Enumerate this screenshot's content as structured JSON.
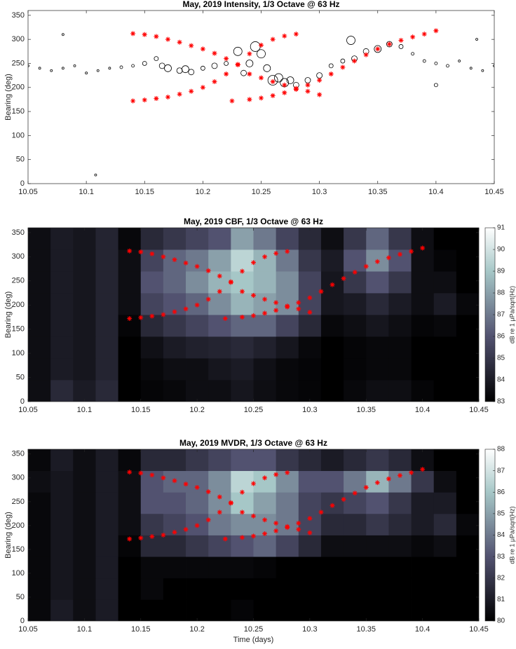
{
  "chart_data": [
    {
      "type": "scatter",
      "title": "May, 2019 Intensity, 1/3 Octave @ 63 Hz",
      "ylabel": "Bearing (deg)",
      "xlim": [
        10.05,
        10.45
      ],
      "xticks": [
        10.05,
        10.1,
        10.15,
        10.2,
        10.25,
        10.3,
        10.35,
        10.4,
        10.45
      ],
      "ylim": [
        0,
        360
      ],
      "yticks": [
        0,
        50,
        100,
        150,
        200,
        250,
        300,
        350
      ],
      "series": [
        {
          "marker": "o",
          "color": "#000000",
          "x": [
            10.05,
            10.06,
            10.07,
            10.08,
            10.09,
            10.1,
            10.11,
            10.12,
            10.13,
            10.14,
            10.15,
            10.16,
            10.165,
            10.17,
            10.18,
            10.185,
            10.19,
            10.2,
            10.21,
            10.22,
            10.23,
            10.235,
            10.24,
            10.245,
            10.25,
            10.255,
            10.26,
            10.265,
            10.27,
            10.275,
            10.28,
            10.29,
            10.3,
            10.31,
            10.32,
            10.327,
            10.33,
            10.34,
            10.35,
            10.36,
            10.37,
            10.38,
            10.39,
            10.4,
            10.41,
            10.42,
            10.43,
            10.44,
            10.45,
            10.08,
            10.108,
            10.435,
            10.4
          ],
          "y": [
            245,
            240,
            235,
            240,
            245,
            230,
            235,
            240,
            242,
            245,
            250,
            260,
            245,
            240,
            235,
            238,
            232,
            240,
            245,
            250,
            275,
            230,
            250,
            285,
            270,
            240,
            215,
            220,
            210,
            215,
            205,
            215,
            225,
            245,
            255,
            298,
            260,
            275,
            280,
            290,
            285,
            270,
            255,
            250,
            245,
            255,
            240,
            235,
            245,
            310,
            18,
            300,
            205
          ],
          "sizes": [
            1.5,
            1.5,
            1.5,
            1.5,
            1.5,
            1.5,
            1.5,
            1.5,
            2,
            2,
            3,
            3,
            4,
            5,
            4,
            5,
            4,
            3,
            4,
            3,
            6,
            4,
            5,
            7,
            6,
            5,
            7,
            6,
            6,
            5,
            4,
            4,
            4,
            3,
            3,
            6,
            4,
            4,
            5,
            4,
            3,
            2,
            2,
            2,
            2,
            1.5,
            1.5,
            1.5,
            1.5,
            1.5,
            1.5,
            1.5,
            2.5
          ]
        },
        {
          "marker": "*",
          "color": "#ff0000",
          "x": [
            10.14,
            10.15,
            10.16,
            10.17,
            10.18,
            10.19,
            10.2,
            10.21,
            10.22,
            10.23,
            10.24,
            10.25,
            10.26,
            10.27,
            10.28,
            10.29,
            10.3
          ],
          "y": [
            312,
            310,
            306,
            300,
            294,
            287,
            280,
            271,
            260,
            247,
            228,
            220,
            212,
            205,
            198,
            192,
            185
          ]
        },
        {
          "marker": "*",
          "color": "#ff0000",
          "x": [
            10.14,
            10.15,
            10.16,
            10.17,
            10.18,
            10.19,
            10.2,
            10.21,
            10.22,
            10.23,
            10.24,
            10.25,
            10.26,
            10.27,
            10.28
          ],
          "y": [
            172,
            174,
            177,
            180,
            186,
            192,
            200,
            212,
            228,
            248,
            270,
            288,
            300,
            307,
            311
          ]
        },
        {
          "marker": "*",
          "color": "#ff0000",
          "x": [
            10.225,
            10.24,
            10.25,
            10.26,
            10.27,
            10.28,
            10.29,
            10.3,
            10.31,
            10.32,
            10.33,
            10.34,
            10.35,
            10.36,
            10.37,
            10.38,
            10.39,
            10.4
          ],
          "y": [
            172,
            175,
            178,
            183,
            189,
            196,
            205,
            215,
            228,
            242,
            255,
            268,
            280,
            290,
            298,
            305,
            311,
            318
          ]
        }
      ]
    },
    {
      "type": "heatmap",
      "title": "May, 2019 CBF, 1/3 Octave @ 63 Hz",
      "ylabel": "Bearing (deg)",
      "xlim": [
        10.05,
        10.45
      ],
      "xticks": [
        10.05,
        10.1,
        10.15,
        10.2,
        10.25,
        10.3,
        10.35,
        10.4,
        10.45
      ],
      "ylim": [
        0,
        360
      ],
      "yticks": [
        0,
        50,
        100,
        150,
        200,
        250,
        300,
        350
      ],
      "colormap": "bone",
      "colorbar_label": "dB re 1 μPa/sqrt(Hz)",
      "zlim": [
        83,
        91
      ],
      "zticks": [
        83,
        84,
        85,
        86,
        87,
        88,
        89,
        90,
        91
      ],
      "xbins": [
        10.05,
        10.07,
        10.09,
        10.11,
        10.13,
        10.15,
        10.17,
        10.19,
        10.21,
        10.23,
        10.25,
        10.27,
        10.29,
        10.31,
        10.33,
        10.35,
        10.37,
        10.39,
        10.41,
        10.43,
        10.45
      ],
      "ybins": [
        0,
        45,
        90,
        135,
        180,
        225,
        270,
        315,
        360
      ],
      "z": [
        [
          83.5,
          84.5,
          84,
          84.5,
          83,
          83.2,
          83.3,
          83.5,
          83.5,
          83.8,
          83.5,
          83.3,
          83.2,
          83,
          83.3,
          83.5,
          83.5,
          83.2,
          83,
          83
        ],
        [
          83.5,
          84,
          83.8,
          84.3,
          83,
          83.3,
          83.5,
          83.5,
          83.8,
          84,
          83.6,
          83.3,
          83.2,
          83,
          83.2,
          83.3,
          83.3,
          83,
          83,
          83
        ],
        [
          83.5,
          84,
          83.8,
          84.3,
          83,
          83.6,
          84,
          84.2,
          84.3,
          84.5,
          84.2,
          83.8,
          83.3,
          83,
          83.2,
          83.3,
          83.3,
          83,
          83,
          83
        ],
        [
          83.5,
          84,
          83.8,
          84.3,
          83.2,
          84.5,
          85,
          85.5,
          86,
          86.5,
          86.5,
          85.5,
          84.5,
          83.3,
          83.5,
          83.8,
          83.5,
          83.2,
          83.3,
          83
        ],
        [
          83.5,
          84,
          83.8,
          84.3,
          83.5,
          85.5,
          86,
          86.5,
          87.5,
          88.5,
          88,
          87.5,
          85.5,
          83.8,
          84,
          84.5,
          84,
          83.5,
          84,
          83.3
        ],
        [
          83.5,
          84,
          83.8,
          84.3,
          83.5,
          86,
          86.5,
          87.5,
          88.5,
          89,
          88.5,
          87.5,
          85.5,
          83.8,
          85,
          86,
          85,
          83.5,
          83.5,
          83
        ],
        [
          83.5,
          84,
          83.8,
          84.3,
          83.5,
          85.5,
          86.5,
          87,
          88,
          89.5,
          88.5,
          87,
          85,
          84,
          86,
          87.5,
          86,
          83.5,
          83.2,
          83
        ],
        [
          83.5,
          84,
          83.8,
          84.3,
          83.3,
          84.5,
          85,
          85.5,
          86,
          88,
          87,
          85.5,
          84.5,
          83.5,
          85,
          86.5,
          85,
          83.5,
          83,
          83
        ]
      ],
      "series": [
        {
          "marker": "*",
          "color": "#ff0000",
          "x": [
            10.14,
            10.15,
            10.16,
            10.17,
            10.18,
            10.19,
            10.2,
            10.21,
            10.22,
            10.23,
            10.24,
            10.25,
            10.26,
            10.27,
            10.28,
            10.29,
            10.3
          ],
          "y": [
            312,
            310,
            306,
            300,
            294,
            287,
            280,
            271,
            260,
            247,
            228,
            220,
            212,
            205,
            198,
            192,
            185
          ]
        },
        {
          "marker": "*",
          "color": "#ff0000",
          "x": [
            10.14,
            10.15,
            10.16,
            10.17,
            10.18,
            10.19,
            10.2,
            10.21,
            10.22,
            10.23,
            10.24,
            10.25,
            10.26,
            10.27,
            10.28
          ],
          "y": [
            172,
            174,
            177,
            180,
            186,
            192,
            200,
            212,
            228,
            248,
            270,
            288,
            300,
            307,
            311
          ]
        },
        {
          "marker": "*",
          "color": "#ff0000",
          "x": [
            10.225,
            10.24,
            10.25,
            10.26,
            10.27,
            10.28,
            10.29,
            10.3,
            10.31,
            10.32,
            10.33,
            10.34,
            10.35,
            10.36,
            10.37,
            10.38,
            10.39,
            10.4
          ],
          "y": [
            172,
            175,
            178,
            183,
            189,
            196,
            205,
            215,
            228,
            242,
            255,
            268,
            280,
            290,
            298,
            305,
            311,
            318
          ]
        }
      ]
    },
    {
      "type": "heatmap",
      "title": "May, 2019 MVDR, 1/3 Octave @ 63 Hz",
      "ylabel": "Bearing (deg)",
      "xlabel": "Time (days)",
      "xlim": [
        10.05,
        10.45
      ],
      "xticks": [
        10.05,
        10.1,
        10.15,
        10.2,
        10.25,
        10.3,
        10.35,
        10.4,
        10.45
      ],
      "ylim": [
        0,
        360
      ],
      "yticks": [
        0,
        50,
        100,
        150,
        200,
        250,
        300,
        350
      ],
      "colormap": "bone",
      "colorbar_label": "dB re 1 μPa/sqrt(Hz)",
      "zlim": [
        80,
        88
      ],
      "zticks": [
        80,
        81,
        82,
        83,
        84,
        85,
        86,
        87,
        88
      ],
      "xbins": [
        10.05,
        10.07,
        10.09,
        10.11,
        10.13,
        10.15,
        10.17,
        10.19,
        10.21,
        10.23,
        10.25,
        10.27,
        10.29,
        10.31,
        10.33,
        10.35,
        10.37,
        10.39,
        10.41,
        10.43,
        10.45
      ],
      "ybins": [
        0,
        45,
        90,
        135,
        180,
        225,
        270,
        315,
        360
      ],
      "z": [
        [
          80.3,
          81,
          80.5,
          81,
          80,
          80,
          80,
          80,
          80,
          80.2,
          80,
          80,
          80,
          80,
          80,
          80,
          80,
          80,
          80,
          80
        ],
        [
          80.3,
          80.8,
          80.5,
          81,
          80,
          80.3,
          80,
          80,
          80,
          80,
          80,
          80,
          80,
          80,
          80,
          80,
          80,
          80,
          80,
          80
        ],
        [
          80.3,
          80.8,
          80.5,
          81,
          80,
          80.3,
          80.3,
          80.3,
          80.3,
          80.3,
          80.2,
          80,
          80,
          80,
          80,
          80,
          80,
          80,
          80,
          80
        ],
        [
          80.3,
          80.8,
          80.5,
          81,
          80.2,
          81.5,
          81.5,
          82,
          82.5,
          83,
          83.5,
          82.5,
          81.5,
          80.5,
          80.5,
          80.5,
          80.5,
          80.3,
          80.5,
          80
        ],
        [
          80.3,
          80.8,
          80.5,
          81,
          80.5,
          82,
          82.5,
          83,
          84,
          84.5,
          84.5,
          84,
          82.5,
          81.5,
          81.5,
          82,
          81.5,
          81,
          81.5,
          80.3
        ],
        [
          80.3,
          80.8,
          80.5,
          81,
          80.5,
          83,
          83,
          83.5,
          84.5,
          86,
          85,
          84,
          82.5,
          82,
          82.5,
          83,
          82,
          81,
          81,
          80
        ],
        [
          80.5,
          80.8,
          80.5,
          81,
          80.5,
          83,
          83.5,
          83.5,
          84.5,
          86.5,
          86,
          84.5,
          83,
          83,
          84,
          85.5,
          84,
          82,
          80.5,
          80
        ],
        [
          80.3,
          81,
          80.5,
          81,
          80.3,
          81.5,
          81.5,
          82,
          82.5,
          83,
          83,
          82,
          81.5,
          81,
          81.5,
          82,
          81.5,
          80.5,
          80,
          80
        ]
      ],
      "series": [
        {
          "marker": "*",
          "color": "#ff0000",
          "x": [
            10.14,
            10.15,
            10.16,
            10.17,
            10.18,
            10.19,
            10.2,
            10.21,
            10.22,
            10.23,
            10.24,
            10.25,
            10.26,
            10.27,
            10.28,
            10.29,
            10.3
          ],
          "y": [
            312,
            310,
            306,
            300,
            294,
            287,
            280,
            271,
            260,
            247,
            228,
            220,
            212,
            205,
            198,
            192,
            185
          ]
        },
        {
          "marker": "*",
          "color": "#ff0000",
          "x": [
            10.14,
            10.15,
            10.16,
            10.17,
            10.18,
            10.19,
            10.2,
            10.21,
            10.22,
            10.23,
            10.24,
            10.25,
            10.26,
            10.27,
            10.28
          ],
          "y": [
            172,
            174,
            177,
            180,
            186,
            192,
            200,
            212,
            228,
            248,
            270,
            288,
            300,
            307,
            311
          ]
        },
        {
          "marker": "*",
          "color": "#ff0000",
          "x": [
            10.225,
            10.24,
            10.25,
            10.26,
            10.27,
            10.28,
            10.29,
            10.3,
            10.31,
            10.32,
            10.33,
            10.34,
            10.35,
            10.36,
            10.37,
            10.38,
            10.39,
            10.4
          ],
          "y": [
            172,
            175,
            178,
            183,
            189,
            196,
            205,
            215,
            228,
            242,
            255,
            268,
            280,
            290,
            298,
            305,
            311,
            318
          ]
        }
      ]
    }
  ]
}
